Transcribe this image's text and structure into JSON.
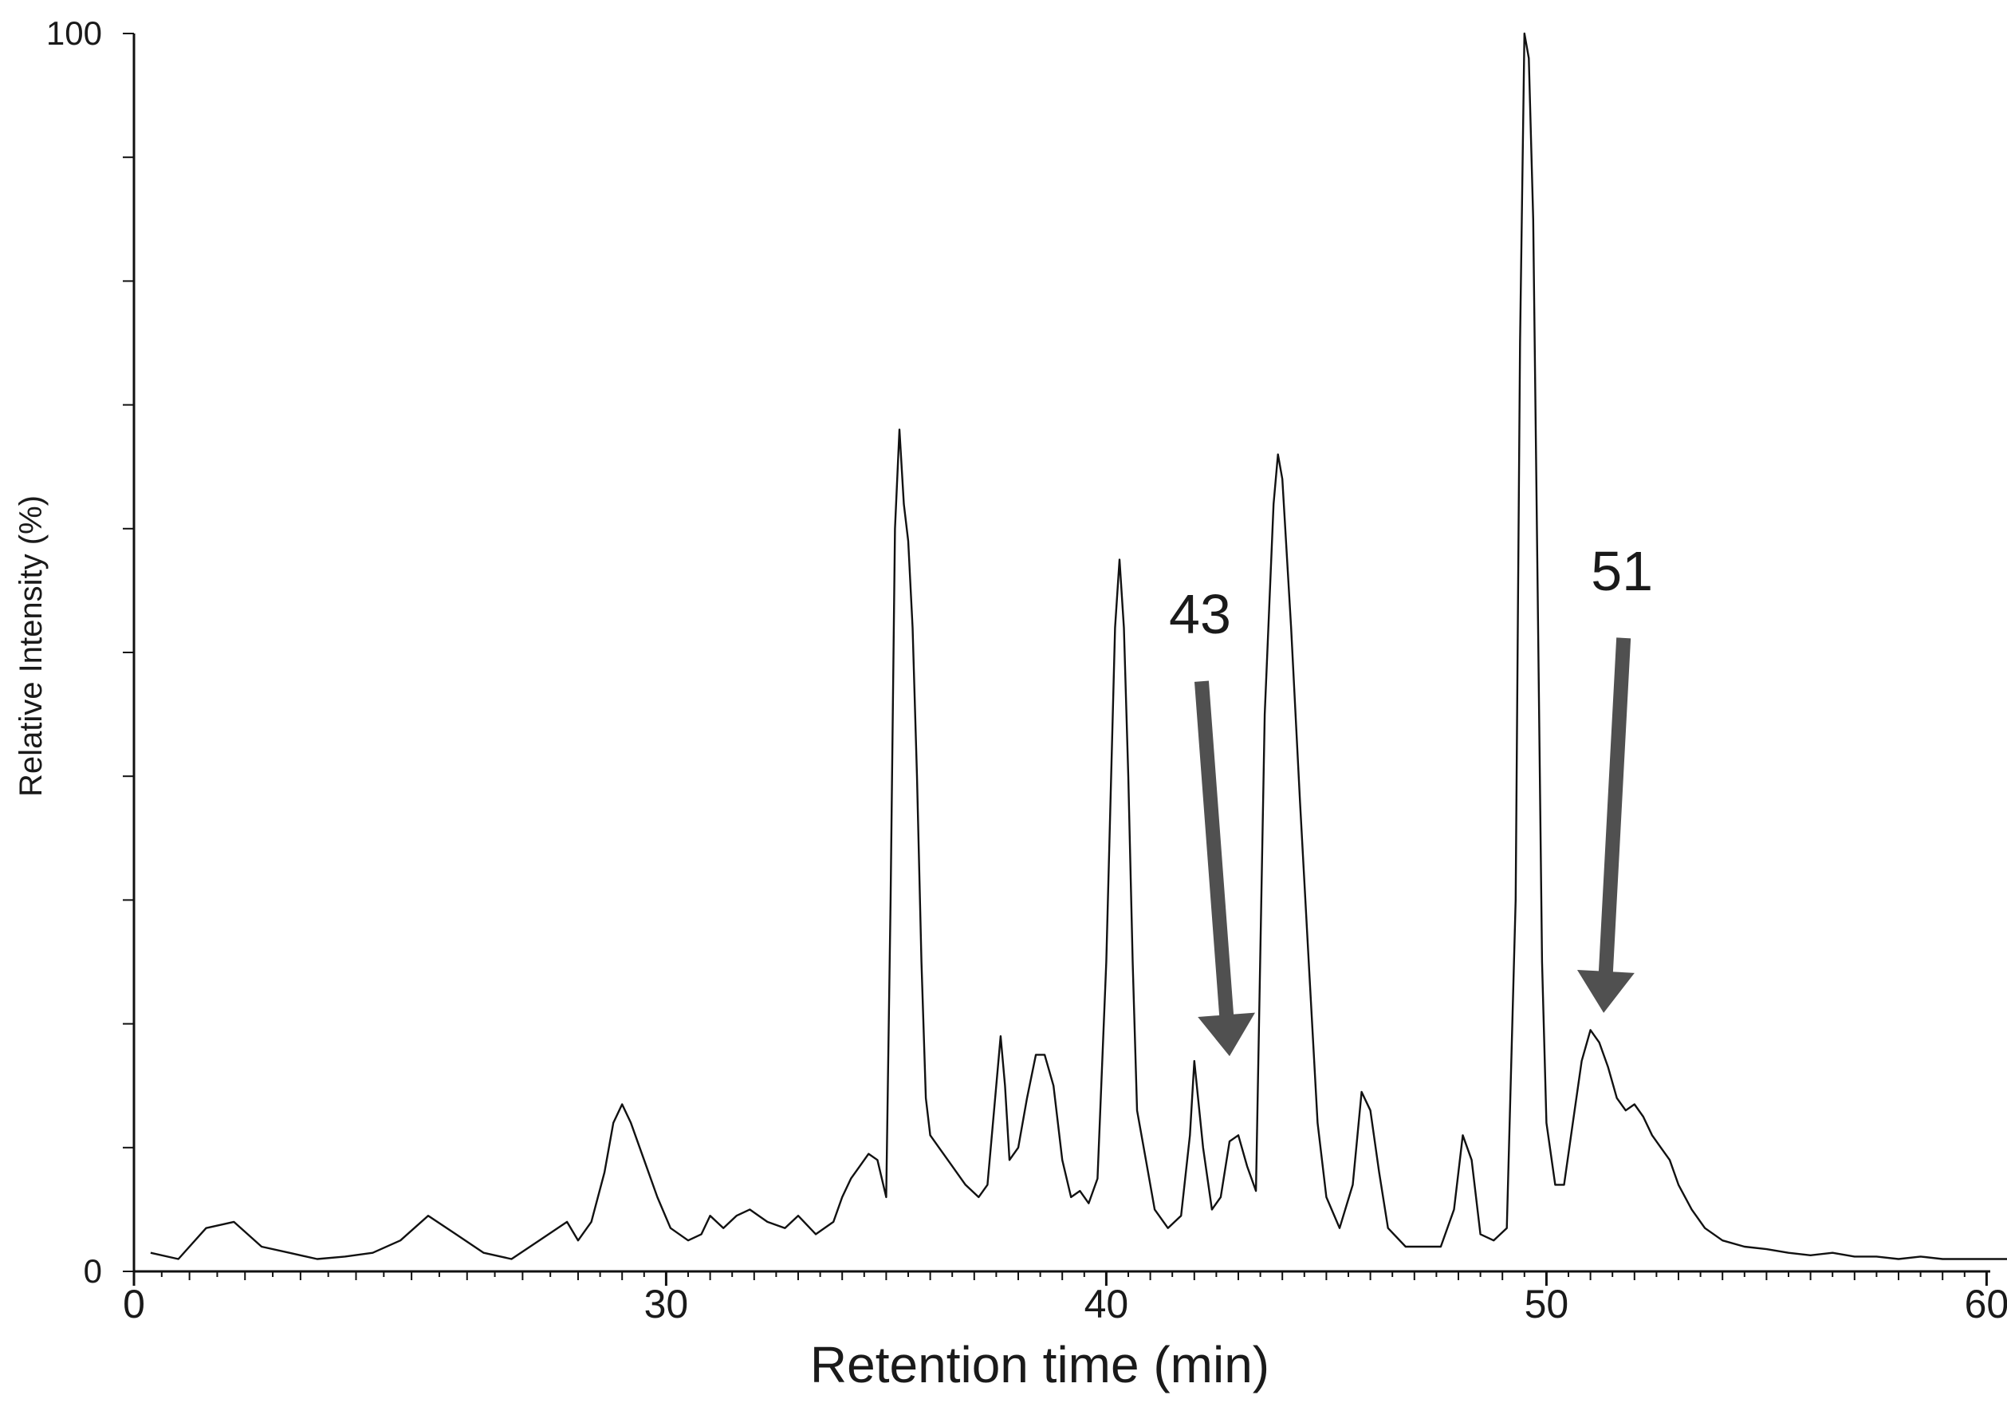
{
  "chart_data": {
    "type": "line",
    "title": "",
    "xlabel": "Retention time (min)",
    "ylabel": "Relative Intensity (%)",
    "xlim": [
      0,
      62
    ],
    "ylim": [
      0,
      100
    ],
    "x_axis_break": {
      "from": 8,
      "to": 28
    },
    "x_ticks": [
      {
        "value": 0,
        "label": "0"
      },
      {
        "value": 30,
        "label": "30"
      },
      {
        "value": 40,
        "label": "40"
      },
      {
        "value": 50,
        "label": "50"
      },
      {
        "value": 60,
        "label": "60"
      }
    ],
    "y_ticks": [
      {
        "value": 0,
        "label": "0"
      },
      {
        "value": 100,
        "label": "100"
      }
    ],
    "grid": false,
    "legend": "none",
    "line_color": "#111111",
    "arrow_color": "#505050",
    "series": [
      {
        "x": [
          0.3,
          0.8,
          1.3,
          1.8,
          2.3,
          2.8,
          3.3,
          3.8,
          4.3,
          4.8,
          5.3,
          5.8,
          6.3,
          6.8,
          7.3,
          7.8,
          28.0,
          28.3,
          28.6,
          28.8,
          29.0,
          29.2,
          29.5,
          29.8,
          30.1,
          30.5,
          30.8,
          31.0,
          31.3,
          31.6,
          31.9,
          32.3,
          32.7,
          33.0,
          33.4,
          33.8,
          34.0,
          34.2,
          34.4,
          34.6,
          34.8,
          35.0,
          35.1,
          35.2,
          35.3,
          35.4,
          35.5,
          35.6,
          35.7,
          35.8,
          35.9,
          36.0,
          36.2,
          36.5,
          36.8,
          37.1,
          37.3,
          37.5,
          37.6,
          37.7,
          37.8,
          38.0,
          38.2,
          38.4,
          38.6,
          38.8,
          39.0,
          39.2,
          39.4,
          39.6,
          39.8,
          40.0,
          40.2,
          40.3,
          40.4,
          40.5,
          40.6,
          40.7,
          40.9,
          41.1,
          41.4,
          41.7,
          41.9,
          42.0,
          42.2,
          42.4,
          42.6,
          42.8,
          43.0,
          43.2,
          43.4,
          43.6,
          43.8,
          43.9,
          44.0,
          44.2,
          44.4,
          44.6,
          44.8,
          45.0,
          45.3,
          45.6,
          45.8,
          46.0,
          46.2,
          46.4,
          46.8,
          47.2,
          47.6,
          47.9,
          48.1,
          48.3,
          48.5,
          48.8,
          49.1,
          49.3,
          49.4,
          49.5,
          49.6,
          49.7,
          49.8,
          49.9,
          50.0,
          50.2,
          50.4,
          50.6,
          50.8,
          51.0,
          51.2,
          51.4,
          51.6,
          51.8,
          52.0,
          52.2,
          52.4,
          52.6,
          52.8,
          53.0,
          53.3,
          53.6,
          54.0,
          54.5,
          55.0,
          55.5,
          56.0,
          56.5,
          57.0,
          57.5,
          58.0,
          58.5,
          59.0,
          59.5,
          60.0,
          60.5,
          61.0
        ],
        "y": [
          1.5,
          1.0,
          3.5,
          4.0,
          2.0,
          1.5,
          1.0,
          1.2,
          1.5,
          2.5,
          4.5,
          3.0,
          1.5,
          1.0,
          2.5,
          4.0,
          2.5,
          4.0,
          8.0,
          12.0,
          13.5,
          12.0,
          9.0,
          6.0,
          3.5,
          2.5,
          3.0,
          4.5,
          3.5,
          4.5,
          5.0,
          4.0,
          3.5,
          4.5,
          3.0,
          4.0,
          6.0,
          7.5,
          8.5,
          9.5,
          9.0,
          6.0,
          30.0,
          60.0,
          68.0,
          62.0,
          59.0,
          52.0,
          40.0,
          25.0,
          14.0,
          11.0,
          10.0,
          8.5,
          7.0,
          6.0,
          7.0,
          15.0,
          19.0,
          15.0,
          9.0,
          10.0,
          14.0,
          17.5,
          17.5,
          15.0,
          9.0,
          6.0,
          6.5,
          5.5,
          7.5,
          25.0,
          52.0,
          57.5,
          52.0,
          40.0,
          25.0,
          13.0,
          9.0,
          5.0,
          3.5,
          4.5,
          11.0,
          17.0,
          10.0,
          5.0,
          6.0,
          10.5,
          11.0,
          8.5,
          6.5,
          45.0,
          62.0,
          66.0,
          64.0,
          52.0,
          38.0,
          25.0,
          12.0,
          6.0,
          3.5,
          7.0,
          14.5,
          13.0,
          8.0,
          3.5,
          2.0,
          2.0,
          2.0,
          5.0,
          11.0,
          9.0,
          3.0,
          2.5,
          3.5,
          30.0,
          75.0,
          100.0,
          98.0,
          85.0,
          55.0,
          25.0,
          12.0,
          7.0,
          7.0,
          12.0,
          17.0,
          19.5,
          18.5,
          16.5,
          14.0,
          13.0,
          13.5,
          12.5,
          11.0,
          10.0,
          9.0,
          7.0,
          5.0,
          3.5,
          2.5,
          2.0,
          1.8,
          1.5,
          1.3,
          1.5,
          1.2,
          1.2,
          1.0,
          1.2,
          1.0,
          1.0,
          1.0,
          1.0,
          0.8
        ]
      }
    ],
    "annotations": [
      {
        "label": "43",
        "x": 42.8,
        "y": 17.0
      },
      {
        "label": "51",
        "x": 51.3,
        "y": 20.5
      }
    ]
  }
}
